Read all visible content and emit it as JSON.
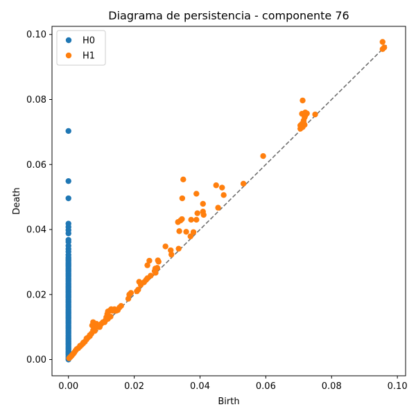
{
  "chart_data": {
    "type": "scatter",
    "title": "Diagrama de persistencia - componente 76",
    "xlabel": "Birth",
    "ylabel": "Death",
    "xlim": [
      -0.005,
      0.1025
    ],
    "ylim": [
      -0.005,
      0.1025
    ],
    "x_ticks": [
      0.0,
      0.02,
      0.04,
      0.06,
      0.08,
      0.1
    ],
    "y_ticks": [
      0.0,
      0.02,
      0.04,
      0.06,
      0.08,
      0.1
    ],
    "x_tick_labels": [
      "0.00",
      "0.02",
      "0.04",
      "0.06",
      "0.08",
      "0.10"
    ],
    "y_tick_labels": [
      "0.00",
      "0.02",
      "0.04",
      "0.06",
      "0.08",
      "0.10"
    ],
    "legend_position": "top-left",
    "grid": false,
    "diagonal": {
      "from": 0.0,
      "to": 0.097,
      "style": "dashed",
      "color": "#6e6e6e"
    },
    "series": [
      {
        "name": "H0",
        "color": "#1f77b4",
        "points": [
          [
            0,
            0.0703
          ],
          [
            0,
            0.0549
          ],
          [
            0,
            0.0496
          ],
          [
            0,
            0.0418
          ],
          [
            0,
            0.0408
          ],
          [
            0,
            0.0398
          ],
          [
            0,
            0.0388
          ],
          [
            0,
            0.0368
          ],
          [
            0,
            0.0362
          ],
          [
            0,
            0.035
          ],
          [
            0,
            0.034
          ],
          [
            0,
            0.0332
          ],
          [
            0,
            0.0322
          ],
          [
            0,
            0.0315
          ],
          [
            0,
            0.031
          ],
          [
            0,
            0.0305
          ],
          [
            0,
            0.03
          ],
          [
            0,
            0.0295
          ],
          [
            0,
            0.029
          ],
          [
            0,
            0.0285
          ],
          [
            0,
            0.028
          ],
          [
            0,
            0.0275
          ],
          [
            0,
            0.027
          ],
          [
            0,
            0.0265
          ],
          [
            0,
            0.026
          ],
          [
            0,
            0.0255
          ],
          [
            0,
            0.025
          ],
          [
            0,
            0.0245
          ],
          [
            0,
            0.024
          ],
          [
            0,
            0.0235
          ],
          [
            0,
            0.023
          ],
          [
            0,
            0.0225
          ],
          [
            0,
            0.022
          ],
          [
            0,
            0.0215
          ],
          [
            0,
            0.021
          ],
          [
            0,
            0.0205
          ],
          [
            0,
            0.02
          ],
          [
            0,
            0.0195
          ],
          [
            0,
            0.019
          ],
          [
            0,
            0.0185
          ],
          [
            0,
            0.018
          ],
          [
            0,
            0.0175
          ],
          [
            0,
            0.017
          ],
          [
            0,
            0.0165
          ],
          [
            0,
            0.016
          ],
          [
            0,
            0.0155
          ],
          [
            0,
            0.015
          ],
          [
            0,
            0.0145
          ],
          [
            0,
            0.014
          ],
          [
            0,
            0.0135
          ],
          [
            0,
            0.013
          ],
          [
            0,
            0.0125
          ],
          [
            0,
            0.012
          ],
          [
            0,
            0.0115
          ],
          [
            0,
            0.011
          ],
          [
            0,
            0.0105
          ],
          [
            0,
            0.01
          ],
          [
            0,
            0.0095
          ],
          [
            0,
            0.009
          ],
          [
            0,
            0.0085
          ],
          [
            0,
            0.008
          ],
          [
            0,
            0.0075
          ],
          [
            0,
            0.007
          ],
          [
            0,
            0.0065
          ],
          [
            0,
            0.006
          ],
          [
            0,
            0.0055
          ],
          [
            0,
            0.005
          ],
          [
            0,
            0.0045
          ],
          [
            0,
            0.004
          ],
          [
            0,
            0.0035
          ],
          [
            0,
            0.003
          ],
          [
            0,
            0.0025
          ],
          [
            0,
            0.002
          ],
          [
            0,
            0.0015
          ],
          [
            0,
            0.001
          ],
          [
            0,
            0.0005
          ],
          [
            0,
            0.0
          ]
        ]
      },
      {
        "name": "H1",
        "color": "#ff7f0e",
        "points": [
          [
            0.0955,
            0.0977
          ],
          [
            0.0955,
            0.0955
          ],
          [
            0.096,
            0.096
          ],
          [
            0.0712,
            0.0797
          ],
          [
            0.071,
            0.0756
          ],
          [
            0.072,
            0.076
          ],
          [
            0.0725,
            0.0757
          ],
          [
            0.075,
            0.0754
          ],
          [
            0.0705,
            0.072
          ],
          [
            0.071,
            0.0725
          ],
          [
            0.0715,
            0.0735
          ],
          [
            0.0718,
            0.0745
          ],
          [
            0.072,
            0.075
          ],
          [
            0.0705,
            0.071
          ],
          [
            0.0712,
            0.0715
          ],
          [
            0.0718,
            0.0722
          ],
          [
            0.0708,
            0.0713
          ],
          [
            0.0715,
            0.0728
          ],
          [
            0.0592,
            0.0626
          ],
          [
            0.0532,
            0.0541
          ],
          [
            0.0449,
            0.0536
          ],
          [
            0.0467,
            0.0529
          ],
          [
            0.0472,
            0.0506
          ],
          [
            0.0455,
            0.0467
          ],
          [
            0.0349,
            0.0554
          ],
          [
            0.0346,
            0.0496
          ],
          [
            0.0389,
            0.051
          ],
          [
            0.0409,
            0.0479
          ],
          [
            0.0409,
            0.0455
          ],
          [
            0.0411,
            0.0445
          ],
          [
            0.0392,
            0.045
          ],
          [
            0.0373,
            0.043
          ],
          [
            0.0389,
            0.043
          ],
          [
            0.0341,
            0.0428
          ],
          [
            0.0345,
            0.0432
          ],
          [
            0.0333,
            0.0423
          ],
          [
            0.0337,
            0.0395
          ],
          [
            0.0358,
            0.0393
          ],
          [
            0.0371,
            0.0379
          ],
          [
            0.038,
            0.0392
          ],
          [
            0.0295,
            0.0348
          ],
          [
            0.0311,
            0.0336
          ],
          [
            0.0313,
            0.0323
          ],
          [
            0.0335,
            0.0341
          ],
          [
            0.0272,
            0.0305
          ],
          [
            0.0274,
            0.0301
          ],
          [
            0.0246,
            0.0304
          ],
          [
            0.024,
            0.029
          ],
          [
            0.0264,
            0.028
          ],
          [
            0.027,
            0.0282
          ],
          [
            0.0262,
            0.0272
          ],
          [
            0.0265,
            0.0267
          ],
          [
            0.025,
            0.0258
          ],
          [
            0.024,
            0.025
          ],
          [
            0.0236,
            0.0245
          ],
          [
            0.023,
            0.0238
          ],
          [
            0.0215,
            0.0239
          ],
          [
            0.022,
            0.023
          ],
          [
            0.0212,
            0.0215
          ],
          [
            0.0208,
            0.021
          ],
          [
            0.0185,
            0.02
          ],
          [
            0.019,
            0.0205
          ],
          [
            0.0182,
            0.0187
          ],
          [
            0.016,
            0.0165
          ],
          [
            0.0155,
            0.016
          ],
          [
            0.0145,
            0.015
          ],
          [
            0.014,
            0.0155
          ],
          [
            0.0135,
            0.015
          ],
          [
            0.013,
            0.0155
          ],
          [
            0.0125,
            0.015
          ],
          [
            0.012,
            0.0148
          ],
          [
            0.0118,
            0.014
          ],
          [
            0.0115,
            0.013
          ],
          [
            0.012,
            0.0125
          ],
          [
            0.0112,
            0.012
          ],
          [
            0.0105,
            0.0115
          ],
          [
            0.01,
            0.011
          ],
          [
            0.0095,
            0.0105
          ],
          [
            0.009,
            0.01
          ],
          [
            0.0085,
            0.011
          ],
          [
            0.008,
            0.01
          ],
          [
            0.0075,
            0.0115
          ],
          [
            0.0072,
            0.0105
          ],
          [
            0.0075,
            0.009
          ],
          [
            0.007,
            0.008
          ],
          [
            0.0065,
            0.0075
          ],
          [
            0.006,
            0.0068
          ],
          [
            0.0055,
            0.0062
          ],
          [
            0.005,
            0.0055
          ],
          [
            0.0045,
            0.005
          ],
          [
            0.004,
            0.0045
          ],
          [
            0.0035,
            0.004
          ],
          [
            0.003,
            0.0035
          ],
          [
            0.0025,
            0.0032
          ],
          [
            0.0022,
            0.0028
          ],
          [
            0.0018,
            0.0022
          ],
          [
            0.0015,
            0.0018
          ],
          [
            0.0012,
            0.0015
          ],
          [
            0.001,
            0.0012
          ],
          [
            0.0008,
            0.001
          ],
          [
            0.0006,
            0.0008
          ],
          [
            0.0004,
            0.0006
          ],
          [
            0.0002,
            0.0004
          ],
          [
            0.0035,
            0.0042
          ],
          [
            0.0045,
            0.0052
          ],
          [
            0.0055,
            0.0065
          ],
          [
            0.0065,
            0.0072
          ],
          [
            0.008,
            0.0088
          ],
          [
            0.0095,
            0.01
          ],
          [
            0.011,
            0.0115
          ],
          [
            0.0128,
            0.0132
          ],
          [
            0.015,
            0.0152
          ]
        ]
      }
    ]
  }
}
